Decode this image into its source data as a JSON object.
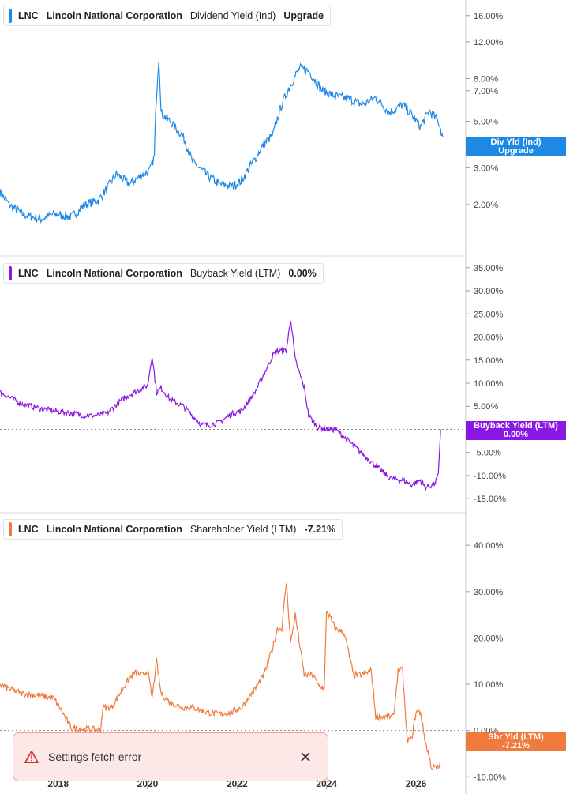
{
  "colors": {
    "panel1": "#1e88e5",
    "panel2": "#8a17e3",
    "panel3": "#f07b3f",
    "grid": "#dddddd",
    "axis_text": "#444444"
  },
  "panels": [
    {
      "ticker": "LNC",
      "company": "Lincoln National Corporation",
      "metric": "Dividend Yield (Ind)",
      "value": "Upgrade",
      "tag_line1": "Div Yld (Ind)",
      "tag_line2": "Upgrade"
    },
    {
      "ticker": "LNC",
      "company": "Lincoln National Corporation",
      "metric": "Buyback Yield (LTM)",
      "value": "0.00%",
      "tag_line1": "Buyback Yield (LTM)",
      "tag_line2": "0.00%"
    },
    {
      "ticker": "LNC",
      "company": "Lincoln National Corporation",
      "metric": "Shareholder Yield (LTM)",
      "value": "-7.21%",
      "tag_line1": "Shr Yld (LTM)",
      "tag_line2": "-7.21%"
    }
  ],
  "toast": {
    "message": "Settings fetch error"
  },
  "chart_data": [
    {
      "type": "line",
      "title": "LNC Lincoln National Corporation Dividend Yield (Ind)",
      "yscale": "log",
      "ylim": [
        1.4,
        19.0
      ],
      "yticks": [
        2,
        3,
        5,
        7,
        8,
        12,
        16
      ],
      "ytick_labels": [
        "2.00%",
        "3.00%",
        "5.00%",
        "7.00%",
        "8.00%",
        "12.00%",
        "16.00%"
      ],
      "xticks": [
        2018,
        2020,
        2022,
        2024,
        2026
      ],
      "series": [
        {
          "x": [
            2016.7,
            2016.9,
            2017.2,
            2017.6,
            2017.9,
            2018.3,
            2018.6,
            2018.9,
            2019.1,
            2019.3,
            2019.6,
            2019.9,
            2020.05,
            2020.15,
            2020.25,
            2020.3,
            2020.5,
            2020.8,
            2021.0,
            2021.3,
            2021.6,
            2021.9,
            2022.1,
            2022.4,
            2022.6,
            2022.8,
            2023.0,
            2023.2,
            2023.4,
            2023.6,
            2023.9,
            2024.2,
            2024.5,
            2024.8,
            2025.1,
            2025.4,
            2025.7,
            2025.9,
            2026.1,
            2026.3,
            2026.5,
            2026.6
          ],
          "y": [
            2.3,
            2.0,
            1.8,
            1.7,
            1.8,
            1.75,
            2.0,
            2.1,
            2.4,
            2.8,
            2.5,
            2.8,
            2.9,
            3.4,
            10.0,
            5.5,
            5.0,
            4.2,
            3.2,
            2.8,
            2.5,
            2.45,
            2.6,
            3.3,
            3.9,
            4.3,
            6.0,
            7.5,
            9.0,
            8.7,
            7.0,
            6.6,
            6.4,
            6.0,
            6.5,
            5.5,
            6.0,
            5.4,
            4.7,
            5.6,
            5.0,
            4.2
          ]
        }
      ]
    },
    {
      "type": "line",
      "title": "LNC Lincoln National Corporation Buyback Yield (LTM)",
      "ylim": [
        -16.5,
        36.5
      ],
      "yticks": [
        -15,
        -10,
        -5,
        5,
        10,
        15,
        20,
        25,
        30,
        35
      ],
      "ytick_labels": [
        "-15.00%",
        "-10.00%",
        "-5.00%",
        "5.00%",
        "10.00%",
        "15.00%",
        "20.00%",
        "25.00%",
        "30.00%",
        "35.00%"
      ],
      "zero_line": 0,
      "xticks": [
        2018,
        2020,
        2022,
        2024,
        2026
      ],
      "series": [
        {
          "x": [
            2016.7,
            2016.9,
            2017.2,
            2017.6,
            2017.9,
            2018.3,
            2018.6,
            2018.9,
            2019.1,
            2019.2,
            2019.5,
            2019.7,
            2019.9,
            2020.0,
            2020.1,
            2020.2,
            2020.3,
            2020.5,
            2020.8,
            2021.0,
            2021.2,
            2021.4,
            2021.6,
            2021.9,
            2022.1,
            2022.4,
            2022.6,
            2022.8,
            2022.9,
            2023.1,
            2023.2,
            2023.3,
            2023.5,
            2023.6,
            2023.8,
            2024.1,
            2024.2,
            2025.4,
            2025.7,
            2025.9,
            2026.1,
            2026.2,
            2026.4,
            2026.5,
            2026.55
          ],
          "y": [
            8,
            7,
            5.5,
            4.5,
            4,
            3.5,
            3,
            3,
            3.5,
            4.5,
            7,
            8,
            9,
            9.5,
            16,
            8,
            9,
            6.5,
            5,
            3,
            1,
            1,
            1.5,
            3.5,
            4,
            8,
            12,
            16,
            17,
            17,
            24,
            15,
            9,
            3,
            0.5,
            0,
            0,
            -10.5,
            -11,
            -12,
            -11,
            -12.5,
            -12,
            -10,
            0
          ]
        }
      ]
    },
    {
      "type": "line",
      "title": "LNC Lincoln National Corporation Shareholder Yield (LTM)",
      "ylim": [
        -12,
        46
      ],
      "yticks": [
        -10,
        0,
        10,
        20,
        30,
        40
      ],
      "ytick_labels": [
        "-10.00%",
        "0.00%",
        "10.00%",
        "20.00%",
        "30.00%",
        "40.00%"
      ],
      "zero_line": 0,
      "xticks": [
        2018,
        2020,
        2022,
        2024,
        2026
      ],
      "series": [
        {
          "x": [
            2016.7,
            2016.9,
            2017.2,
            2017.6,
            2017.9,
            2018.0,
            2018.3,
            2018.6,
            2018.95,
            2019.0,
            2019.2,
            2019.5,
            2019.7,
            2019.9,
            2020.0,
            2020.1,
            2020.2,
            2020.3,
            2020.5,
            2020.8,
            2021.0,
            2021.3,
            2021.6,
            2021.9,
            2022.1,
            2022.4,
            2022.6,
            2022.8,
            2022.9,
            2023.0,
            2023.1,
            2023.2,
            2023.3,
            2023.5,
            2023.7,
            2023.8,
            2023.95,
            2024.0,
            2024.2,
            2024.4,
            2024.6,
            2024.8,
            2025.0,
            2025.1,
            2025.3,
            2025.5,
            2025.6,
            2025.7,
            2025.8,
            2025.9,
            2026.0,
            2026.1,
            2026.2,
            2026.35,
            2026.5,
            2026.55
          ],
          "y": [
            10,
            9,
            8,
            7.5,
            7,
            5.5,
            0.5,
            0.3,
            0.2,
            5,
            5,
            10,
            12.5,
            12,
            13,
            7,
            15,
            8,
            6,
            5,
            5,
            4,
            3.5,
            4,
            5,
            9,
            12,
            18,
            22,
            22,
            32,
            19,
            25,
            12,
            12,
            10,
            9,
            26,
            22,
            21,
            12,
            12,
            13,
            3,
            3,
            3,
            13,
            13,
            -2,
            -2,
            4,
            4,
            -2,
            -8,
            -8,
            -7.21
          ]
        }
      ]
    }
  ]
}
